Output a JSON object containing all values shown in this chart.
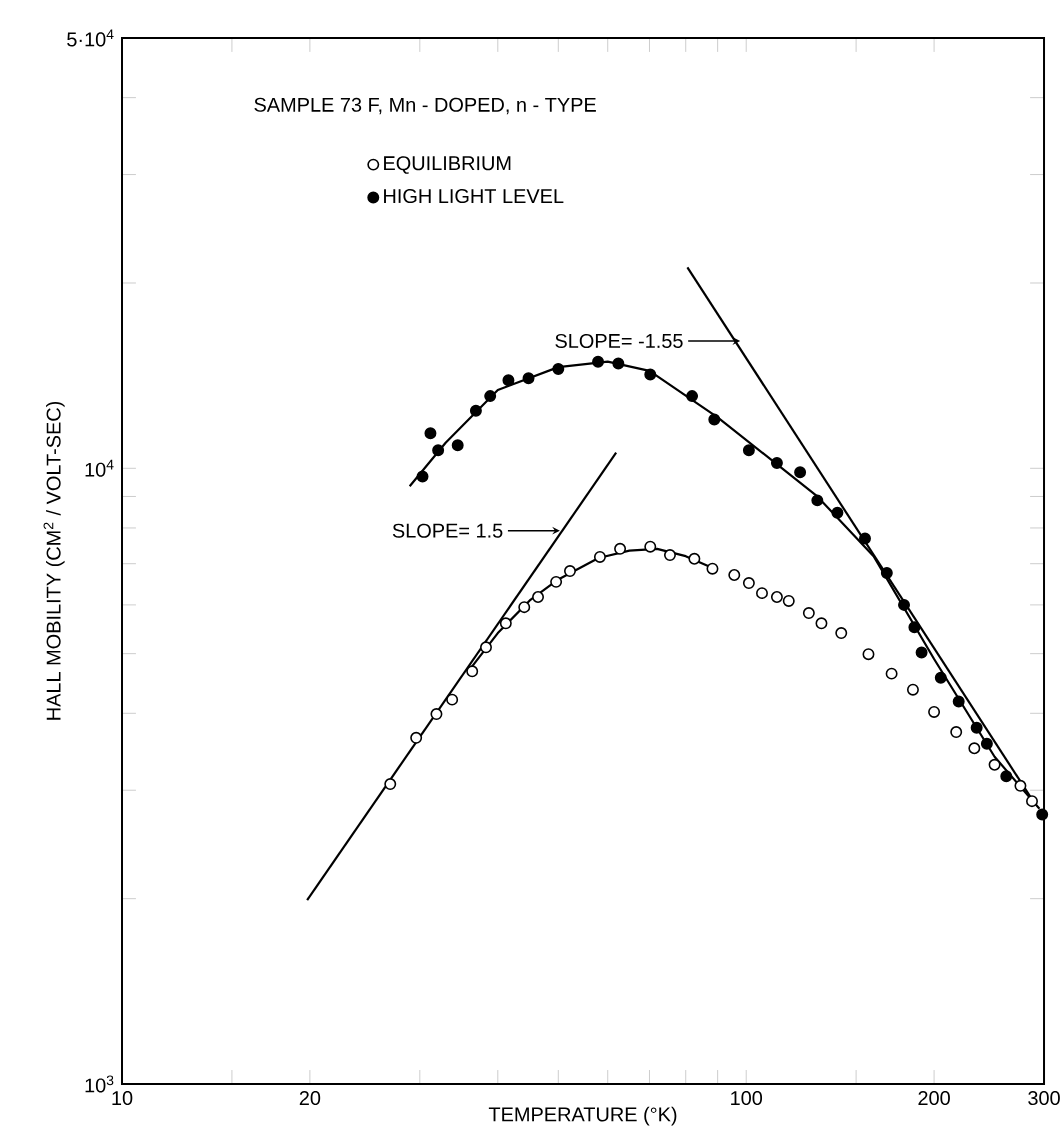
{
  "chart_data": {
    "type": "scatter",
    "xlabel": "TEMPERATURE (°K)",
    "ylabel": "HALL MOBILITY (CM$^{2}$ / VOLT-SEC)",
    "log": "xy",
    "xlim": [
      10,
      300
    ],
    "ylim": [
      1000,
      50000
    ],
    "xticks": [
      10,
      {
        "value": 15,
        "label": null
      },
      20,
      {
        "value": 30,
        "label": null
      },
      {
        "value": 40,
        "label": null
      },
      {
        "value": 50,
        "label": null
      },
      {
        "value": 60,
        "label": null
      },
      {
        "value": 70,
        "label": null
      },
      {
        "value": 80,
        "label": null
      },
      {
        "value": 90,
        "label": null
      },
      100,
      {
        "value": 150,
        "label": null
      },
      200,
      300
    ],
    "yticks": [
      {
        "value": 1000,
        "label": "10$^{3}$"
      },
      {
        "value": 2000,
        "label": null
      },
      {
        "value": 3000,
        "label": null
      },
      {
        "value": 4000,
        "label": null
      },
      {
        "value": 5000,
        "label": null
      },
      {
        "value": 6000,
        "label": null
      },
      {
        "value": 7000,
        "label": null
      },
      {
        "value": 8000,
        "label": null
      },
      {
        "value": 9000,
        "label": null
      },
      {
        "value": 10000,
        "label": "10$^{4}$"
      },
      {
        "value": 20000,
        "label": null
      },
      {
        "value": 30000,
        "label": null
      },
      {
        "value": 40000,
        "label": null
      },
      {
        "value": 50000,
        "label": "5·10$^{4}$"
      }
    ],
    "grid": false,
    "legend": "top left",
    "marker": "circle",
    "annotations": [
      "SAMPLE  73 F,  Mn - DOPED, n - TYPE",
      {
        "text": "SLOPE= 1.5",
        "x": 50.3,
        "y": 7920
      },
      {
        "text": "SLOPE= -1.55",
        "x": 97.8,
        "y": 16100
      }
    ],
    "series": [
      {
        "name": "EQUILIBRIUM",
        "color": "#000000",
        "x": [
          26.9,
          29.6,
          31.9,
          33.8,
          36.4,
          38.3,
          41.2,
          44.1,
          46.4,
          49.6,
          52.2,
          58.3,
          62.8,
          70.2,
          75.5,
          82.6,
          88.3,
          95.7,
          101,
          106,
          112,
          117,
          126,
          132,
          142,
          157,
          171,
          185,
          200,
          217,
          232,
          250,
          275,
          287
        ],
        "values": [
          3070,
          3650,
          3990,
          4210,
          4680,
          5120,
          5600,
          5950,
          6180,
          6540,
          6810,
          7180,
          7400,
          7460,
          7230,
          7130,
          6870,
          6710,
          6510,
          6270,
          6180,
          6090,
          5820,
          5600,
          5400,
          4990,
          4640,
          4370,
          4020,
          3730,
          3510,
          3300,
          3050,
          2880
        ]
      },
      {
        "name": "HIGH LIGHT LEVEL",
        "color": "#000000",
        "x": [
          30.3,
          31.2,
          32.1,
          34.5,
          36.9,
          38.9,
          41.6,
          44.8,
          50.0,
          57.9,
          62.4,
          70.2,
          81.9,
          88.9,
          101,
          112,
          122,
          130,
          140,
          155,
          168,
          179,
          186,
          191,
          205,
          219,
          234,
          243,
          261,
          298
        ],
        "values": [
          9700,
          11400,
          10700,
          10900,
          12400,
          13100,
          13900,
          14000,
          14500,
          14900,
          14800,
          14200,
          13100,
          12000,
          10700,
          10200,
          9850,
          8870,
          8470,
          7690,
          6760,
          6000,
          5520,
          5020,
          4570,
          4180,
          3790,
          3570,
          3160,
          2740
        ]
      },
      {
        "type": "line",
        "color": "#000000",
        "marker": "none",
        "x": [
          28.9,
          33,
          40,
          50,
          60,
          70,
          90,
          110,
          130,
          160,
          200,
          250,
          295
        ],
        "values": [
          9350,
          11000,
          13400,
          14600,
          14900,
          14400,
          12100,
          10300,
          9000,
          7200,
          4900,
          3400,
          2800
        ]
      },
      {
        "type": "line",
        "color": "#000000",
        "marker": "none",
        "x": [
          36,
          40,
          45,
          50,
          58,
          65,
          72,
          80,
          88
        ],
        "values": [
          4700,
          5400,
          6100,
          6600,
          7150,
          7350,
          7400,
          7200,
          6900
        ]
      },
      {
        "type": "line",
        "color": "#000000",
        "marker": "none",
        "x": [
          19.8,
          61.9
        ],
        "values": [
          1990,
          10600
        ]
      },
      {
        "type": "line",
        "color": "#000000",
        "marker": "none",
        "x": [
          80.5,
          287
        ],
        "values": [
          21200,
          2900
        ]
      }
    ]
  }
}
